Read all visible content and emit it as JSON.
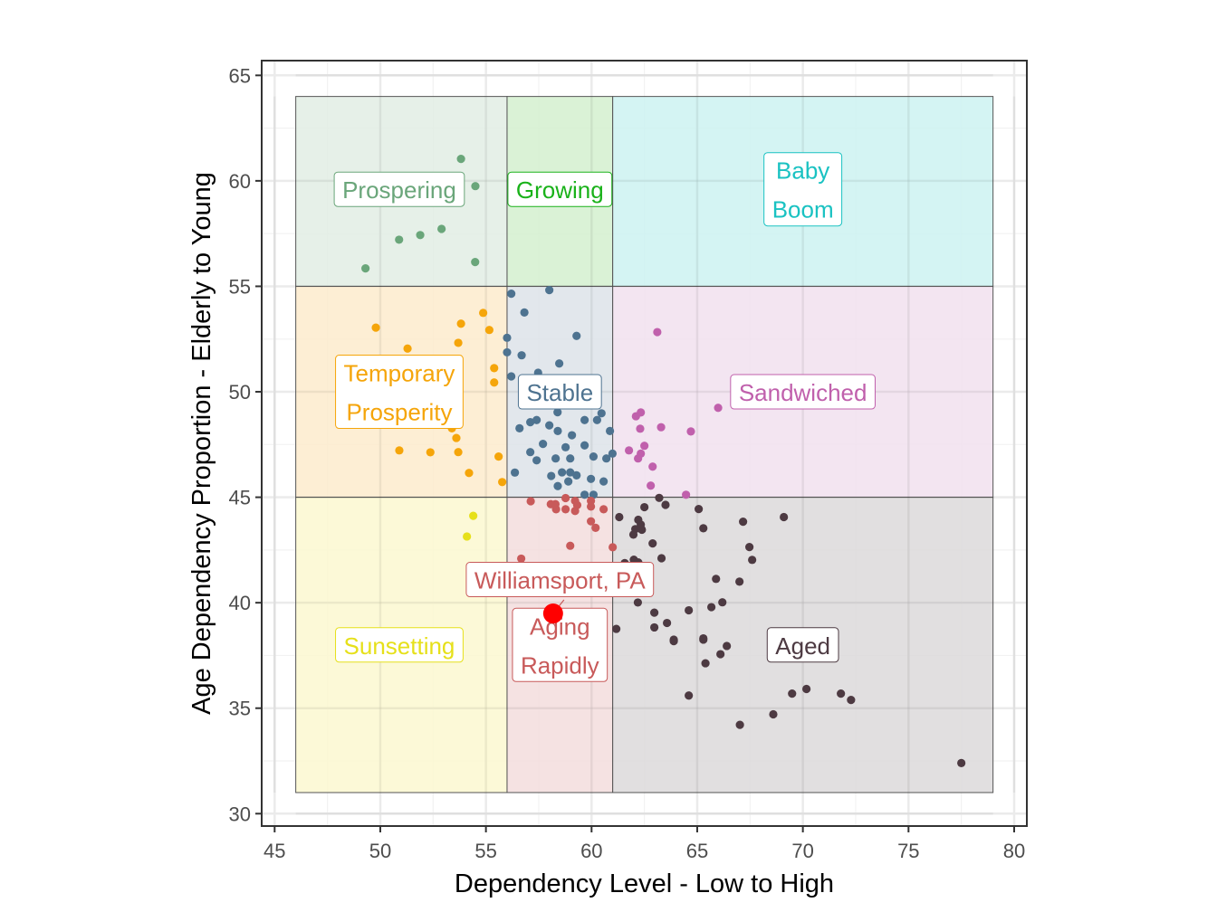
{
  "chart_data": {
    "type": "scatter",
    "title": "",
    "xlabel": "Dependency Level - Low to High",
    "ylabel": "Age Dependency Proportion - Elderly to Young",
    "xlim": [
      44.4,
      80.6
    ],
    "ylim": [
      29.4,
      65.7
    ],
    "x_ticks": [
      45,
      50,
      55,
      60,
      65,
      70,
      75,
      80
    ],
    "y_ticks": [
      30,
      35,
      40,
      45,
      50,
      55,
      60,
      65
    ],
    "x_tick_labels": [
      "45",
      "50",
      "55",
      "60",
      "65",
      "70",
      "75",
      "80"
    ],
    "y_tick_labels": [
      "30",
      "35",
      "40",
      "45",
      "50",
      "55",
      "60",
      "65"
    ],
    "grid": true,
    "legend": "none",
    "regions": [
      {
        "name": "Prospering",
        "label": [
          "Prospering"
        ],
        "x": [
          46,
          56
        ],
        "y": [
          55,
          64
        ],
        "fill": "#e2ede4",
        "color": "#6aa67a",
        "label_at": [
          50.9,
          59.6
        ]
      },
      {
        "name": "Growing",
        "label": [
          "Growing"
        ],
        "x": [
          56,
          61
        ],
        "y": [
          55,
          64
        ],
        "fill": "#d3f0cf",
        "color": "#1ab21a",
        "label_at": [
          58.5,
          59.6
        ]
      },
      {
        "name": "Baby Boom",
        "label": [
          "Baby",
          "Boom"
        ],
        "x": [
          61,
          79
        ],
        "y": [
          55,
          64
        ],
        "fill": "#cdf2f1",
        "color": "#1ac2c2",
        "label_at": [
          70,
          59.6
        ]
      },
      {
        "name": "Temporary Prosperity",
        "label": [
          "Temporary",
          "Prosperity"
        ],
        "x": [
          46,
          56
        ],
        "y": [
          45,
          55
        ],
        "fill": "#fdebcd",
        "color": "#f5a50a",
        "label_at": [
          50.9,
          50
        ]
      },
      {
        "name": "Stable",
        "label": [
          "Stable"
        ],
        "x": [
          56,
          61
        ],
        "y": [
          45,
          55
        ],
        "fill": "#dde3e9",
        "color": "#4e7390",
        "label_at": [
          58.5,
          50
        ]
      },
      {
        "name": "Sandwiched",
        "label": [
          "Sandwiched"
        ],
        "x": [
          61,
          79
        ],
        "y": [
          45,
          55
        ],
        "fill": "#f1e0ef",
        "color": "#c060ac",
        "label_at": [
          70,
          50
        ]
      },
      {
        "name": "Sunsetting",
        "label": [
          "Sunsetting"
        ],
        "x": [
          46,
          56
        ],
        "y": [
          31,
          45
        ],
        "fill": "#fbf8d0",
        "color": "#e6e01a",
        "label_at": [
          50.9,
          38
        ]
      },
      {
        "name": "Aging Rapidly",
        "label": [
          "Aging",
          "Rapidly"
        ],
        "x": [
          56,
          61
        ],
        "y": [
          31,
          45
        ],
        "fill": "#f3dddd",
        "color": "#c85a5a",
        "label_at": [
          58.5,
          38
        ]
      },
      {
        "name": "Aged",
        "label": [
          "Aged"
        ],
        "x": [
          61,
          79
        ],
        "y": [
          31,
          45
        ],
        "fill": "#dcd9da",
        "color": "#4d3a42",
        "label_at": [
          70,
          38
        ]
      }
    ],
    "series": [
      {
        "name": "Prospering",
        "color": "#6aa67a",
        "x": [
          53.82,
          54.5,
          50.89,
          51.89,
          52.9,
          54.49,
          49.3
        ],
        "y": [
          61.04,
          59.75,
          57.21,
          57.43,
          57.72,
          56.15,
          55.85
        ]
      },
      {
        "name": "Temporary Prosperity",
        "color": "#f5a50a",
        "x": [
          49.79,
          51.29,
          53.82,
          54.87,
          55.16,
          53.69,
          55.39,
          55.39,
          53.39,
          53.6,
          50.9,
          52.37,
          53.69,
          55.6,
          54.2,
          55.77
        ],
        "y": [
          53.04,
          52.05,
          53.23,
          53.74,
          52.93,
          52.32,
          51.12,
          50.44,
          48.27,
          47.81,
          47.22,
          47.13,
          47.14,
          46.93,
          46.15,
          45.72
        ]
      },
      {
        "name": "Stable",
        "color": "#4e7390",
        "x": [
          56.2,
          58.0,
          56.82,
          59.29,
          56.0,
          56.0,
          56.69,
          58.47,
          56.2,
          57.47,
          58.39,
          60.47,
          59.67,
          60.26,
          57.4,
          57.1,
          58.0,
          56.59,
          58.4,
          60.87,
          59.07,
          57.7,
          59.67,
          58.77,
          57.1,
          60.99,
          60.7,
          60.09,
          57.4,
          58.3,
          58.99,
          56.37,
          58.09,
          58.6,
          58.99,
          59.29,
          58.4,
          58.9,
          59.97,
          60.57,
          59.67,
          60.09
        ],
        "y": [
          54.65,
          54.82,
          53.76,
          52.65,
          52.56,
          51.87,
          51.73,
          51.34,
          50.73,
          50.9,
          49.03,
          48.98,
          48.66,
          48.66,
          48.66,
          48.56,
          48.41,
          48.27,
          48.14,
          48.14,
          47.94,
          47.53,
          47.46,
          47.37,
          47.14,
          47.07,
          46.84,
          46.93,
          46.75,
          46.84,
          46.84,
          46.17,
          46.01,
          46.18,
          46.18,
          46.04,
          45.53,
          45.75,
          45.87,
          45.75,
          45.12,
          45.12
        ]
      },
      {
        "name": "Sandwiched",
        "color": "#c060ac",
        "x": [
          63.11,
          65.99,
          62.1,
          62.33,
          62.3,
          63.29,
          64.7,
          62.5,
          61.77,
          62.33,
          62.2,
          62.89,
          62.8,
          64.47
        ],
        "y": [
          52.83,
          49.24,
          48.84,
          49.02,
          48.25,
          48.32,
          48.12,
          47.44,
          47.22,
          47.07,
          46.84,
          46.45,
          45.55,
          45.12
        ]
      },
      {
        "name": "Sunsetting",
        "color": "#e6e01a",
        "x": [
          54.4,
          54.1
        ],
        "y": [
          44.12,
          43.14
        ]
      },
      {
        "name": "Aging Rapidly",
        "color": "#c85a5a",
        "x": [
          57.12,
          58.77,
          58.07,
          58.29,
          58.32,
          58.77,
          59.22,
          59.32,
          59.22,
          59.97,
          59.97,
          60.57,
          59.97,
          60.19,
          58.99,
          61.0,
          56.67
        ],
        "y": [
          44.81,
          44.96,
          44.67,
          44.67,
          44.43,
          44.43,
          44.83,
          44.63,
          44.35,
          44.83,
          44.56,
          44.43,
          43.86,
          43.55,
          42.7,
          42.63,
          42.09
        ]
      },
      {
        "name": "Aged",
        "color": "#4d3a42",
        "x": [
          63.2,
          63.5,
          62.5,
          65.07,
          61.31,
          62.21,
          62.33,
          62.07,
          62.38,
          61.98,
          65.29,
          67.17,
          69.1,
          62.89,
          67.47,
          67.6,
          63.31,
          62.0,
          62.21,
          61.57,
          65.89,
          67.0,
          66.19,
          65.67,
          64.6,
          62.19,
          62.97,
          63.57,
          62.97,
          61.17,
          63.89,
          65.29,
          63.89,
          65.29,
          66.4,
          66.1,
          65.39,
          64.6,
          69.49,
          70.17,
          71.8,
          72.28,
          68.6,
          67.02,
          77.5
        ],
        "y": [
          44.97,
          44.64,
          44.53,
          44.44,
          44.06,
          43.93,
          43.7,
          43.49,
          43.46,
          43.23,
          43.53,
          43.84,
          44.06,
          42.81,
          42.64,
          42.03,
          42.11,
          42.04,
          41.91,
          41.88,
          41.13,
          41.0,
          40.02,
          39.79,
          39.64,
          40.01,
          39.53,
          39.04,
          38.83,
          38.76,
          38.25,
          38.31,
          38.18,
          38.25,
          37.95,
          37.56,
          37.13,
          35.6,
          35.69,
          35.91,
          35.69,
          35.39,
          34.71,
          34.21,
          32.4
        ]
      }
    ],
    "highlight": {
      "name": "Williamsport, PA",
      "label": "Williamsport, PA",
      "x": 58.18,
      "y": 39.49,
      "color": "#ff0000",
      "label_color": "#c85a5a",
      "label_at": [
        58.5,
        41.1
      ]
    }
  }
}
